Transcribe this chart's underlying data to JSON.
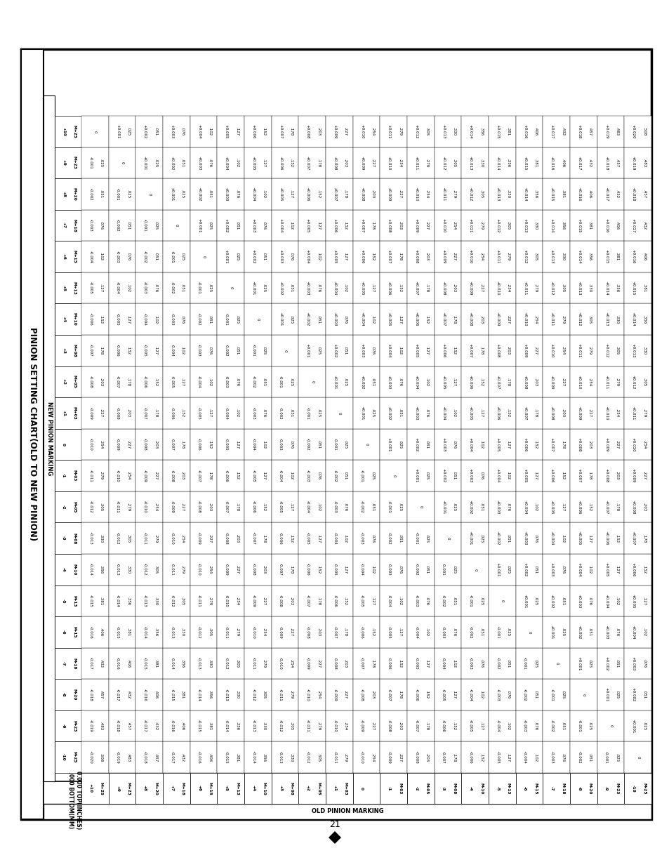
{
  "title": "PINION SETTING CHART(OLD TO NEW PINION)",
  "header_right": "0.000 TOP(INCHES)\n.000 BOTTOM(MM)",
  "col_label": "NEW PINION MARKING",
  "row_label": "OLD PINION MARKING",
  "col_headers": [
    "-10\nM-25",
    "-9\nM-23",
    "-8\nM-20",
    "-7\nM-18",
    "-6\nM-15",
    "-5\nM-13",
    "-4\nM-10",
    "-3\nM-08",
    "-2\nM-05",
    "-1\nM-03",
    "0",
    "+1\nM+03",
    "+2\nM+05",
    "+3\nM+08",
    "+4\nM+10",
    "+5\nM+13",
    "+6\nM+15",
    "+7\nM+18",
    "+8\nM+20",
    "+9\nM+23",
    "+10\nM+25"
  ],
  "row_headers": [
    "+10\nM+25",
    "+9\nM+23",
    "+8\nM+20",
    "+7\nM+18",
    "+6\nM+15",
    "+5\nM+13",
    "+4\nM+10",
    "+3\nM+08",
    "+2\nM+05",
    "+1\nM+03",
    "0",
    "-1\nM-03",
    "-2\nM-05",
    "-3\nM-08",
    "-4\nM-10",
    "-5\nM-13",
    "-6\nM-15",
    "-7\nM-18",
    "-8\nM-20",
    "-9\nM-23",
    "-10\nM-25"
  ],
  "table_data": [
    [
      "-0.020\n.508",
      "-0.019\n.483",
      "-0.018\n.457",
      "-0.017\n.432",
      "-0.016\n.406",
      "-0.015\n.381",
      "-0.014\n.356",
      "-0.013\n.330",
      "-0.012\n.305",
      "-0.011\n.279",
      "-0.010\n.254",
      "-0.009\n.227",
      "-0.008\n.203",
      "-0.007\n.178",
      "-0.006\n.152",
      "-0.005\n.127",
      "-0.004\n.102",
      "-0.003\n.076",
      "-0.002\n.051",
      "-0.001\n.025",
      "0"
    ],
    [
      "-0.019\n.483",
      "-0.018\n.457",
      "-0.017\n.432",
      "-0.016\n.406",
      "-0.015\n.381",
      "-0.014\n.356",
      "-0.013\n.330",
      "-0.012\n.305",
      "-0.011\n.279",
      "-0.010\n.254",
      "-0.009\n.227",
      "-0.008\n.203",
      "-0.007\n.178",
      "-0.006\n.152",
      "-0.005\n.127",
      "-0.004\n.102",
      "-0.003\n.076",
      "-0.002\n.051",
      "-0.001\n.025",
      "0",
      "+0.001\n.025"
    ],
    [
      "-0.018\n.457",
      "-0.017\n.432",
      "-0.016\n.406",
      "-0.015\n.381",
      "-0.014\n.356",
      "-0.013\n.330",
      "-0.012\n.305",
      "-0.011\n.279",
      "-0.010\n.254",
      "-0.009\n.227",
      "-0.008\n.203",
      "-0.007\n.178",
      "-0.006\n.152",
      "-0.005\n.127",
      "-0.004\n.102",
      "-0.003\n.076",
      "-0.002\n.051",
      "-0.001\n.025",
      "0",
      "+0.001\n.025",
      "+0.002\n.051"
    ],
    [
      "-0.017\n.432",
      "-0.016\n.406",
      "-0.015\n.381",
      "-0.014\n.356",
      "-0.013\n.330",
      "-0.012\n.305",
      "-0.011\n.279",
      "-0.010\n.254",
      "-0.009\n.227",
      "-0.008\n.203",
      "-0.007\n.178",
      "-0.006\n.152",
      "-0.005\n.127",
      "-0.004\n.102",
      "-0.003\n.076",
      "-0.002\n.051",
      "-0.001\n.025",
      "0",
      "+0.001\n.025",
      "+0.002\n.051",
      "+0.003\n.076"
    ],
    [
      "-0.016\n.406",
      "-0.015\n.381",
      "-0.014\n.356",
      "-0.013\n.330",
      "-0.012\n.305",
      "-0.011\n.279",
      "-0.010\n.254",
      "-0.009\n.227",
      "-0.008\n.203",
      "-0.007\n.178",
      "-0.006\n.152",
      "-0.005\n.127",
      "-0.004\n.102",
      "-0.003\n.076",
      "-0.002\n.051",
      "-0.001\n.025",
      "0",
      "+0.001\n.025",
      "+0.002\n.051",
      "+0.003\n.076",
      "+0.004\n.102"
    ],
    [
      "-0.015\n.381",
      "-0.014\n.356",
      "-0.013\n.330",
      "-0.012\n.305",
      "-0.011\n.279",
      "-0.010\n.254",
      "-0.009\n.227",
      "-0.008\n.203",
      "-0.007\n.178",
      "-0.006\n.152",
      "-0.005\n.127",
      "-0.004\n.102",
      "-0.003\n.076",
      "-0.002\n.051",
      "-0.001\n.025",
      "0",
      "+0.001\n.025",
      "+0.002\n.051",
      "+0.003\n.076",
      "+0.004\n.102",
      "+0.005\n.127"
    ],
    [
      "-0.014\n.356",
      "-0.013\n.330",
      "-0.012\n.305",
      "-0.011\n.279",
      "-0.010\n.254",
      "-0.009\n.227",
      "-0.008\n.203",
      "-0.007\n.178",
      "-0.006\n.152",
      "-0.005\n.127",
      "-0.004\n.102",
      "-0.003\n.076",
      "-0.002\n.051",
      "-0.001\n.025",
      "0",
      "+0.001\n.025",
      "+0.002\n.051",
      "+0.003\n.076",
      "+0.004\n.102",
      "+0.005\n.127",
      "+0.006\n.152"
    ],
    [
      "-0.013\n.330",
      "-0.012\n.305",
      "-0.011\n.279",
      "-0.010\n.254",
      "-0.009\n.227",
      "-0.008\n.203",
      "-0.007\n.178",
      "-0.006\n.152",
      "-0.005\n.127",
      "-0.004\n.102",
      "-0.003\n.076",
      "-0.002\n.051",
      "-0.001\n.025",
      "0",
      "+0.001\n.025",
      "+0.002\n.051",
      "+0.003\n.076",
      "+0.004\n.102",
      "+0.005\n.127",
      "+0.006\n.152",
      "+0.007\n.178"
    ],
    [
      "-0.012\n.305",
      "-0.011\n.279",
      "-0.010\n.254",
      "-0.009\n.227",
      "-0.008\n.203",
      "-0.007\n.178",
      "-0.006\n.152",
      "-0.005\n.127",
      "-0.004\n.102",
      "-0.003\n.076",
      "-0.002\n.051",
      "-0.001\n.025",
      "0",
      "+0.001\n.025",
      "+0.002\n.051",
      "+0.003\n.076",
      "+0.004\n.102",
      "+0.005\n.127",
      "+0.006\n.152",
      "+0.007\n.178",
      "+0.008\n.203"
    ],
    [
      "-0.011\n.279",
      "-0.010\n.254",
      "-0.009\n.227",
      "-0.008\n.203",
      "-0.007\n.178",
      "-0.006\n.152",
      "-0.005\n.127",
      "-0.004\n.102",
      "-0.003\n.076",
      "-0.002\n.051",
      "-0.001\n.025",
      "0",
      "+0.001\n.025",
      "+0.002\n.051",
      "+0.003\n.076",
      "+0.004\n.102",
      "+0.005\n.127",
      "+0.006\n.152",
      "+0.007\n.178",
      "+0.008\n.203",
      "+0.009\n.227"
    ],
    [
      "-0.010\n.254",
      "-0.009\n.227",
      "-0.008\n.203",
      "-0.007\n.178",
      "-0.006\n.152",
      "-0.005\n.127",
      "-0.004\n.102",
      "-0.003\n.076",
      "-0.002\n.051",
      "-0.001\n.025",
      "0",
      "+0.001\n.025",
      "+0.002\n.051",
      "+0.003\n.076",
      "+0.004\n.102",
      "+0.005\n.127",
      "+0.006\n.152",
      "+0.007\n.178",
      "+0.008\n.203",
      "+0.009\n.227",
      "+0.010\n.254"
    ],
    [
      "-0.009\n.227",
      "-0.008\n.203",
      "-0.007\n.178",
      "-0.006\n.152",
      "-0.005\n.127",
      "-0.004\n.102",
      "-0.003\n.076",
      "-0.002\n.051",
      "-0.001\n.025",
      "0",
      "+0.001\n.025",
      "+0.002\n.051",
      "+0.003\n.076",
      "+0.004\n.102",
      "+0.005\n.127",
      "+0.006\n.152",
      "+0.007\n.178",
      "+0.008\n.203",
      "+0.009\n.227",
      "+0.010\n.254",
      "+0.011\n.279"
    ],
    [
      "-0.008\n.203",
      "-0.007\n.178",
      "-0.006\n.152",
      "-0.005\n.127",
      "-0.004\n.102",
      "-0.003\n.076",
      "-0.002\n.051",
      "-0.001\n.025",
      "0",
      "+0.001\n.025",
      "+0.002\n.051",
      "+0.003\n.076",
      "+0.004\n.102",
      "+0.005\n.127",
      "+0.006\n.152",
      "+0.007\n.178",
      "+0.008\n.203",
      "+0.009\n.227",
      "+0.010\n.254",
      "+0.011\n.279",
      "+0.012\n.305"
    ],
    [
      "-0.007\n.178",
      "-0.006\n.152",
      "-0.005\n.127",
      "-0.004\n.102",
      "-0.003\n.076",
      "-0.002\n.051",
      "-0.001\n.025",
      "0",
      "+0.001\n.025",
      "+0.002\n.051",
      "+0.003\n.076",
      "+0.004\n.102",
      "+0.005\n.127",
      "+0.006\n.152",
      "+0.007\n.178",
      "+0.008\n.203",
      "+0.009\n.227",
      "+0.010\n.254",
      "+0.011\n.279",
      "+0.012\n.305",
      "+0.013\n.330"
    ],
    [
      "-0.006\n.152",
      "-0.005\n.127",
      "-0.004\n.102",
      "-0.003\n.076",
      "-0.002\n.051",
      "-0.001\n.025",
      "0",
      "+0.001\n.025",
      "+0.002\n.051",
      "+0.003\n.076",
      "+0.004\n.102",
      "+0.005\n.127",
      "+0.006\n.152",
      "+0.007\n.178",
      "+0.008\n.203",
      "+0.009\n.227",
      "+0.010\n.254",
      "+0.011\n.279",
      "+0.012\n.305",
      "+0.013\n.330",
      "+0.014\n.356"
    ],
    [
      "-0.005\n.127",
      "-0.004\n.102",
      "-0.003\n.076",
      "-0.002\n.051",
      "-0.001\n.025",
      "0",
      "+0.001\n.025",
      "+0.002\n.051",
      "+0.003\n.076",
      "+0.004\n.102",
      "+0.005\n.127",
      "+0.006\n.152",
      "+0.007\n.178",
      "+0.008\n.203",
      "+0.009\n.227",
      "+0.010\n.254",
      "+0.011\n.279",
      "+0.012\n.305",
      "+0.013\n.330",
      "+0.014\n.356",
      "+0.015\n.381"
    ],
    [
      "-0.004\n.102",
      "-0.003\n.076",
      "-0.002\n.051",
      "-0.001\n.025",
      "0",
      "+0.001\n.025",
      "+0.002\n.051",
      "+0.003\n.076",
      "+0.004\n.102",
      "+0.005\n.127",
      "+0.006\n.152",
      "+0.007\n.178",
      "+0.008\n.203",
      "+0.009\n.227",
      "+0.010\n.254",
      "+0.011\n.279",
      "+0.012\n.305",
      "+0.013\n.330",
      "+0.014\n.356",
      "+0.015\n.381",
      "+0.016\n.406"
    ],
    [
      "-0.003\n.076",
      "-0.002\n.051",
      "-0.001\n.025",
      "0",
      "+0.001\n.025",
      "+0.002\n.051",
      "+0.003\n.076",
      "+0.004\n.102",
      "+0.005\n.127",
      "+0.006\n.152",
      "+0.007\n.178",
      "+0.008\n.203",
      "+0.009\n.227",
      "+0.010\n.254",
      "+0.011\n.279",
      "+0.012\n.305",
      "+0.013\n.330",
      "+0.014\n.356",
      "+0.015\n.381",
      "+0.016\n.406",
      "+0.017\n.432"
    ],
    [
      "-0.002\n.051",
      "-0.001\n.025",
      "0",
      "+0.001\n.025",
      "+0.002\n.051",
      "+0.003\n.076",
      "+0.004\n.102",
      "+0.005\n.127",
      "+0.006\n.152",
      "+0.007\n.178",
      "+0.008\n.203",
      "+0.009\n.227",
      "+0.010\n.254",
      "+0.011\n.279",
      "+0.012\n.305",
      "+0.013\n.330",
      "+0.014\n.356",
      "+0.015\n.381",
      "+0.016\n.406",
      "+0.017\n.432",
      "+0.018\n.457"
    ],
    [
      "-0.001\n.025",
      "0",
      "+0.001\n.025",
      "+0.002\n.051",
      "+0.003\n.076",
      "+0.004\n.102",
      "+0.005\n.127",
      "+0.006\n.152",
      "+0.007\n.178",
      "+0.008\n.203",
      "+0.009\n.227",
      "+0.010\n.254",
      "+0.011\n.279",
      "+0.012\n.305",
      "+0.013\n.330",
      "+0.014\n.356",
      "+0.015\n.381",
      "+0.016\n.406",
      "+0.017\n.432",
      "+0.018\n.457",
      "+0.019\n.483"
    ],
    [
      "0",
      "+0.001\n.025",
      "+0.002\n.051",
      "+0.003\n.076",
      "+0.004\n.102",
      "+0.005\n.127",
      "+0.006\n.152",
      "+0.007\n.178",
      "+0.008\n.203",
      "+0.009\n.227",
      "+0.010\n.254",
      "+0.011\n.279",
      "+0.012\n.305",
      "+0.013\n.330",
      "+0.014\n.356",
      "+0.015\n.381",
      "+0.016\n.406",
      "+0.017\n.432",
      "+0.018\n.457",
      "+0.019\n.483",
      "+0.020\n.508"
    ]
  ],
  "bg_color": "#ffffff",
  "border_color": "#000000",
  "text_color": "#000000",
  "font_size": 4.0,
  "title_font_size": 8.5,
  "page_number": "21"
}
